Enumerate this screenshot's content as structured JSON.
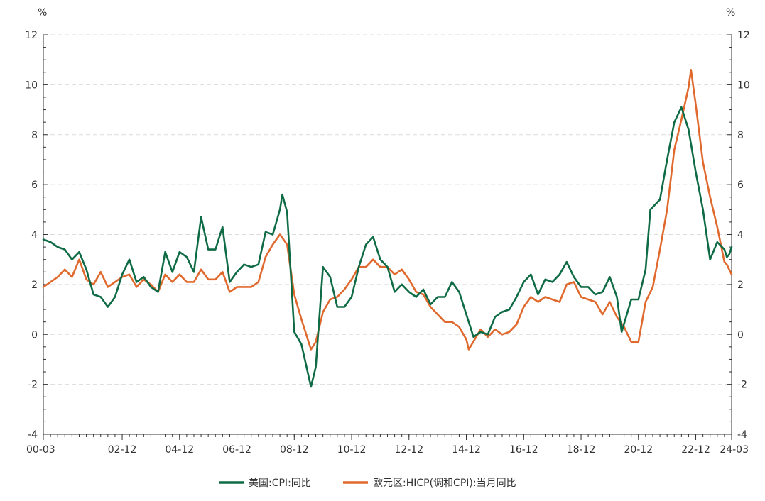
{
  "chart_data": {
    "type": "line",
    "title": "",
    "xlabel": "",
    "ylabel_left": "%",
    "ylabel_right": "%",
    "ylim": [
      -4,
      12
    ],
    "yticks": [
      -4,
      -2,
      0,
      2,
      4,
      6,
      8,
      10,
      12
    ],
    "xlim": [
      "2000-03",
      "2024-03"
    ],
    "xticks": [
      "00-03",
      "02-12",
      "04-12",
      "06-12",
      "08-12",
      "10-12",
      "12-12",
      "14-12",
      "16-12",
      "18-12",
      "20-12",
      "22-12",
      "24-03"
    ],
    "grid": true,
    "legend_position": "bottom-center",
    "series": [
      {
        "name": "美国:CPI:同比",
        "color": "#0e6b45",
        "points": [
          [
            "2000-03",
            3.8
          ],
          [
            "2000-06",
            3.7
          ],
          [
            "2000-09",
            3.5
          ],
          [
            "2000-12",
            3.4
          ],
          [
            "2001-03",
            3.0
          ],
          [
            "2001-06",
            3.3
          ],
          [
            "2001-09",
            2.6
          ],
          [
            "2001-12",
            1.6
          ],
          [
            "2002-03",
            1.5
          ],
          [
            "2002-06",
            1.1
          ],
          [
            "2002-09",
            1.5
          ],
          [
            "2002-12",
            2.4
          ],
          [
            "2003-03",
            3.0
          ],
          [
            "2003-06",
            2.1
          ],
          [
            "2003-09",
            2.3
          ],
          [
            "2003-12",
            1.9
          ],
          [
            "2004-03",
            1.7
          ],
          [
            "2004-06",
            3.3
          ],
          [
            "2004-09",
            2.5
          ],
          [
            "2004-12",
            3.3
          ],
          [
            "2005-03",
            3.1
          ],
          [
            "2005-06",
            2.5
          ],
          [
            "2005-09",
            4.7
          ],
          [
            "2005-12",
            3.4
          ],
          [
            "2006-03",
            3.4
          ],
          [
            "2006-06",
            4.3
          ],
          [
            "2006-09",
            2.1
          ],
          [
            "2006-12",
            2.5
          ],
          [
            "2007-03",
            2.8
          ],
          [
            "2007-06",
            2.7
          ],
          [
            "2007-09",
            2.8
          ],
          [
            "2007-12",
            4.1
          ],
          [
            "2008-03",
            4.0
          ],
          [
            "2008-06",
            5.0
          ],
          [
            "2008-07",
            5.6
          ],
          [
            "2008-09",
            4.9
          ],
          [
            "2008-12",
            0.1
          ],
          [
            "2009-03",
            -0.4
          ],
          [
            "2009-07",
            -2.1
          ],
          [
            "2009-09",
            -1.3
          ],
          [
            "2009-12",
            2.7
          ],
          [
            "2010-03",
            2.3
          ],
          [
            "2010-06",
            1.1
          ],
          [
            "2010-09",
            1.1
          ],
          [
            "2010-12",
            1.5
          ],
          [
            "2011-03",
            2.7
          ],
          [
            "2011-06",
            3.6
          ],
          [
            "2011-09",
            3.9
          ],
          [
            "2011-12",
            3.0
          ],
          [
            "2012-03",
            2.7
          ],
          [
            "2012-06",
            1.7
          ],
          [
            "2012-09",
            2.0
          ],
          [
            "2012-12",
            1.7
          ],
          [
            "2013-03",
            1.5
          ],
          [
            "2013-06",
            1.8
          ],
          [
            "2013-09",
            1.2
          ],
          [
            "2013-12",
            1.5
          ],
          [
            "2014-03",
            1.5
          ],
          [
            "2014-06",
            2.1
          ],
          [
            "2014-09",
            1.7
          ],
          [
            "2014-12",
            0.8
          ],
          [
            "2015-03",
            -0.1
          ],
          [
            "2015-06",
            0.1
          ],
          [
            "2015-09",
            0.0
          ],
          [
            "2015-12",
            0.7
          ],
          [
            "2016-03",
            0.9
          ],
          [
            "2016-06",
            1.0
          ],
          [
            "2016-09",
            1.5
          ],
          [
            "2016-12",
            2.1
          ],
          [
            "2017-03",
            2.4
          ],
          [
            "2017-06",
            1.6
          ],
          [
            "2017-09",
            2.2
          ],
          [
            "2017-12",
            2.1
          ],
          [
            "2018-03",
            2.4
          ],
          [
            "2018-06",
            2.9
          ],
          [
            "2018-09",
            2.3
          ],
          [
            "2018-12",
            1.9
          ],
          [
            "2019-03",
            1.9
          ],
          [
            "2019-06",
            1.6
          ],
          [
            "2019-09",
            1.7
          ],
          [
            "2019-12",
            2.3
          ],
          [
            "2020-03",
            1.5
          ],
          [
            "2020-05",
            0.1
          ],
          [
            "2020-09",
            1.4
          ],
          [
            "2020-12",
            1.4
          ],
          [
            "2021-03",
            2.6
          ],
          [
            "2021-05",
            5.0
          ],
          [
            "2021-09",
            5.4
          ],
          [
            "2021-12",
            7.0
          ],
          [
            "2022-03",
            8.5
          ],
          [
            "2022-06",
            9.1
          ],
          [
            "2022-09",
            8.2
          ],
          [
            "2022-12",
            6.5
          ],
          [
            "2023-03",
            5.0
          ],
          [
            "2023-06",
            3.0
          ],
          [
            "2023-09",
            3.7
          ],
          [
            "2023-12",
            3.4
          ],
          [
            "2024-01",
            3.1
          ],
          [
            "2024-02",
            3.2
          ],
          [
            "2024-03",
            3.5
          ]
        ]
      },
      {
        "name": "欧元区:HICP(调和CPI):当月同比",
        "color": "#e0692e",
        "points": [
          [
            "2000-03",
            1.9
          ],
          [
            "2000-06",
            2.1
          ],
          [
            "2000-09",
            2.3
          ],
          [
            "2000-12",
            2.6
          ],
          [
            "2001-03",
            2.3
          ],
          [
            "2001-06",
            3.0
          ],
          [
            "2001-09",
            2.2
          ],
          [
            "2001-12",
            2.0
          ],
          [
            "2002-03",
            2.5
          ],
          [
            "2002-06",
            1.9
          ],
          [
            "2002-09",
            2.1
          ],
          [
            "2002-12",
            2.3
          ],
          [
            "2003-03",
            2.4
          ],
          [
            "2003-06",
            1.9
          ],
          [
            "2003-09",
            2.2
          ],
          [
            "2003-12",
            2.0
          ],
          [
            "2004-03",
            1.7
          ],
          [
            "2004-06",
            2.4
          ],
          [
            "2004-09",
            2.1
          ],
          [
            "2004-12",
            2.4
          ],
          [
            "2005-03",
            2.1
          ],
          [
            "2005-06",
            2.1
          ],
          [
            "2005-09",
            2.6
          ],
          [
            "2005-12",
            2.2
          ],
          [
            "2006-03",
            2.2
          ],
          [
            "2006-06",
            2.5
          ],
          [
            "2006-09",
            1.7
          ],
          [
            "2006-12",
            1.9
          ],
          [
            "2007-03",
            1.9
          ],
          [
            "2007-06",
            1.9
          ],
          [
            "2007-09",
            2.1
          ],
          [
            "2007-12",
            3.1
          ],
          [
            "2008-03",
            3.6
          ],
          [
            "2008-06",
            4.0
          ],
          [
            "2008-09",
            3.6
          ],
          [
            "2008-12",
            1.6
          ],
          [
            "2009-03",
            0.6
          ],
          [
            "2009-07",
            -0.6
          ],
          [
            "2009-09",
            -0.3
          ],
          [
            "2009-12",
            0.9
          ],
          [
            "2010-03",
            1.4
          ],
          [
            "2010-06",
            1.5
          ],
          [
            "2010-09",
            1.8
          ],
          [
            "2010-12",
            2.2
          ],
          [
            "2011-03",
            2.7
          ],
          [
            "2011-06",
            2.7
          ],
          [
            "2011-09",
            3.0
          ],
          [
            "2011-12",
            2.7
          ],
          [
            "2012-03",
            2.7
          ],
          [
            "2012-06",
            2.4
          ],
          [
            "2012-09",
            2.6
          ],
          [
            "2012-12",
            2.2
          ],
          [
            "2013-03",
            1.7
          ],
          [
            "2013-06",
            1.6
          ],
          [
            "2013-09",
            1.1
          ],
          [
            "2013-12",
            0.8
          ],
          [
            "2014-03",
            0.5
          ],
          [
            "2014-06",
            0.5
          ],
          [
            "2014-09",
            0.3
          ],
          [
            "2014-12",
            -0.2
          ],
          [
            "2015-01",
            -0.6
          ],
          [
            "2015-06",
            0.2
          ],
          [
            "2015-09",
            -0.1
          ],
          [
            "2015-12",
            0.2
          ],
          [
            "2016-03",
            0.0
          ],
          [
            "2016-06",
            0.1
          ],
          [
            "2016-09",
            0.4
          ],
          [
            "2016-12",
            1.1
          ],
          [
            "2017-03",
            1.5
          ],
          [
            "2017-06",
            1.3
          ],
          [
            "2017-09",
            1.5
          ],
          [
            "2017-12",
            1.4
          ],
          [
            "2018-03",
            1.3
          ],
          [
            "2018-06",
            2.0
          ],
          [
            "2018-09",
            2.1
          ],
          [
            "2018-12",
            1.5
          ],
          [
            "2019-03",
            1.4
          ],
          [
            "2019-06",
            1.3
          ],
          [
            "2019-09",
            0.8
          ],
          [
            "2019-12",
            1.3
          ],
          [
            "2020-03",
            0.7
          ],
          [
            "2020-06",
            0.3
          ],
          [
            "2020-09",
            -0.3
          ],
          [
            "2020-12",
            -0.3
          ],
          [
            "2021-03",
            1.3
          ],
          [
            "2021-06",
            1.9
          ],
          [
            "2021-09",
            3.4
          ],
          [
            "2021-12",
            5.0
          ],
          [
            "2022-03",
            7.4
          ],
          [
            "2022-06",
            8.6
          ],
          [
            "2022-09",
            9.9
          ],
          [
            "2022-10",
            10.6
          ],
          [
            "2022-12",
            9.2
          ],
          [
            "2023-03",
            6.9
          ],
          [
            "2023-06",
            5.5
          ],
          [
            "2023-09",
            4.3
          ],
          [
            "2023-12",
            2.9
          ],
          [
            "2024-01",
            2.8
          ],
          [
            "2024-02",
            2.6
          ],
          [
            "2024-03",
            2.4
          ]
        ]
      }
    ]
  }
}
